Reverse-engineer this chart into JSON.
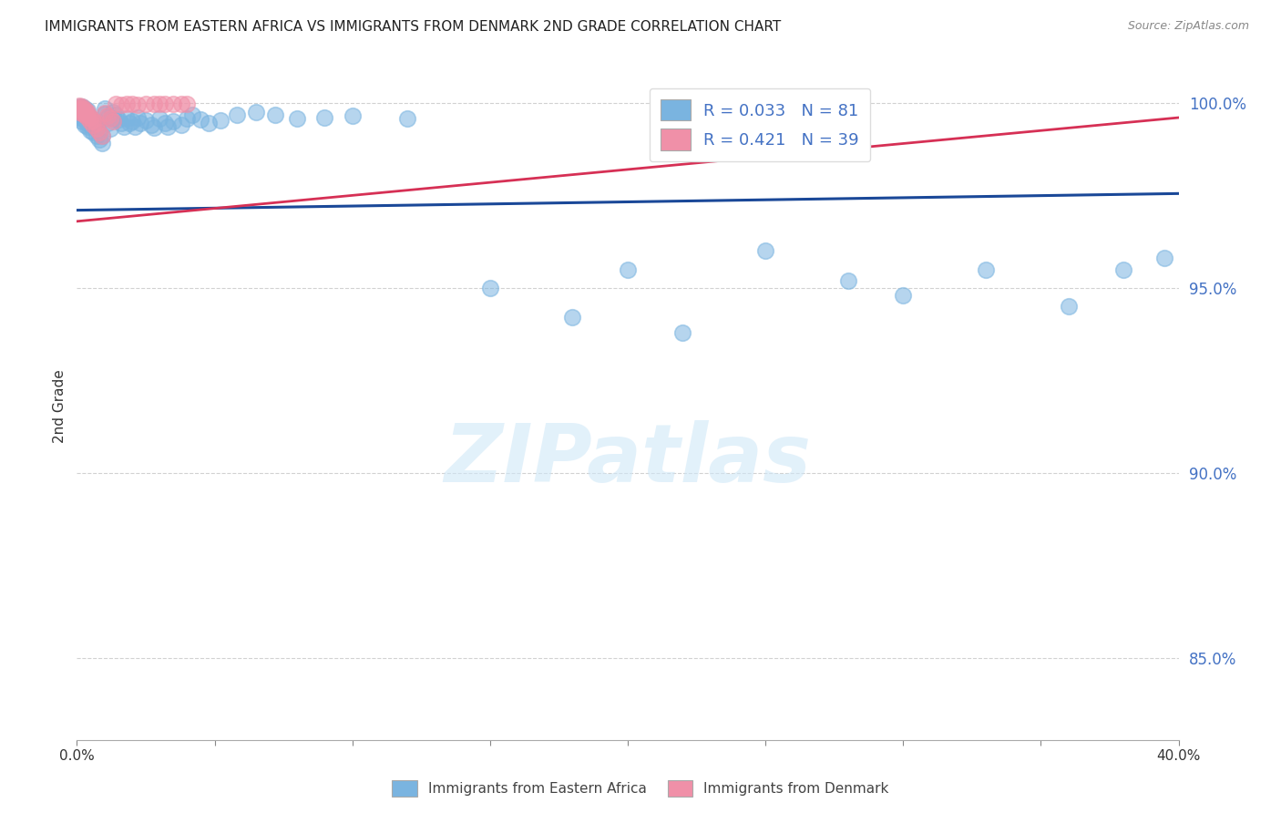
{
  "title": "IMMIGRANTS FROM EASTERN AFRICA VS IMMIGRANTS FROM DENMARK 2ND GRADE CORRELATION CHART",
  "source": "Source: ZipAtlas.com",
  "ylabel": "2nd Grade",
  "xlim": [
    0.0,
    0.4
  ],
  "ylim": [
    0.828,
    1.008
  ],
  "yticks": [
    0.85,
    0.9,
    0.95,
    1.0
  ],
  "ytick_labels": [
    "85.0%",
    "90.0%",
    "95.0%",
    "100.0%"
  ],
  "xticks": [
    0.0,
    0.05,
    0.1,
    0.15,
    0.2,
    0.25,
    0.3,
    0.35,
    0.4
  ],
  "xtick_labels": [
    "0.0%",
    "",
    "",
    "",
    "",
    "",
    "",
    "",
    "40.0%"
  ],
  "legend_blue_label": "Immigrants from Eastern Africa",
  "legend_pink_label": "Immigrants from Denmark",
  "R_blue": 0.033,
  "N_blue": 81,
  "R_pink": 0.421,
  "N_pink": 39,
  "blue_color": "#7ab4e0",
  "pink_color": "#f090a8",
  "blue_line_color": "#1a4898",
  "pink_line_color": "#d63055",
  "watermark": "ZIPatlas",
  "background_color": "#ffffff",
  "grid_color": "#cccccc",
  "blue_scatter_x": [
    0.0005,
    0.001,
    0.001,
    0.001,
    0.001,
    0.002,
    0.002,
    0.002,
    0.002,
    0.002,
    0.003,
    0.003,
    0.003,
    0.003,
    0.003,
    0.004,
    0.004,
    0.004,
    0.004,
    0.004,
    0.005,
    0.005,
    0.005,
    0.006,
    0.006,
    0.006,
    0.007,
    0.007,
    0.007,
    0.008,
    0.008,
    0.009,
    0.009,
    0.01,
    0.01,
    0.011,
    0.011,
    0.012,
    0.013,
    0.013,
    0.014,
    0.015,
    0.016,
    0.017,
    0.018,
    0.019,
    0.02,
    0.021,
    0.022,
    0.023,
    0.025,
    0.027,
    0.028,
    0.03,
    0.032,
    0.033,
    0.035,
    0.038,
    0.04,
    0.042,
    0.045,
    0.048,
    0.052,
    0.058,
    0.065,
    0.072,
    0.08,
    0.09,
    0.1,
    0.12,
    0.15,
    0.18,
    0.2,
    0.22,
    0.25,
    0.28,
    0.3,
    0.33,
    0.36,
    0.38,
    0.395
  ],
  "blue_scatter_y": [
    0.998,
    0.996,
    0.997,
    0.9985,
    0.999,
    0.995,
    0.996,
    0.9975,
    0.9985,
    0.999,
    0.994,
    0.9955,
    0.9965,
    0.9975,
    0.9985,
    0.9935,
    0.9945,
    0.9958,
    0.997,
    0.998,
    0.9925,
    0.994,
    0.996,
    0.992,
    0.9935,
    0.995,
    0.991,
    0.9928,
    0.9945,
    0.99,
    0.992,
    0.989,
    0.9912,
    0.9985,
    0.997,
    0.996,
    0.9945,
    0.993,
    0.9975,
    0.9958,
    0.9968,
    0.9955,
    0.9945,
    0.9935,
    0.9958,
    0.9945,
    0.995,
    0.9935,
    0.996,
    0.9945,
    0.9952,
    0.994,
    0.9932,
    0.9958,
    0.9945,
    0.9935,
    0.995,
    0.994,
    0.9958,
    0.9968,
    0.9955,
    0.9945,
    0.9952,
    0.9968,
    0.9975,
    0.9968,
    0.9958,
    0.996,
    0.9965,
    0.9958,
    0.95,
    0.942,
    0.955,
    0.938,
    0.96,
    0.952,
    0.948,
    0.955,
    0.945,
    0.955,
    0.958
  ],
  "pink_scatter_x": [
    0.0005,
    0.0008,
    0.001,
    0.001,
    0.001,
    0.002,
    0.002,
    0.002,
    0.002,
    0.003,
    0.003,
    0.003,
    0.004,
    0.004,
    0.004,
    0.005,
    0.005,
    0.006,
    0.006,
    0.007,
    0.007,
    0.008,
    0.009,
    0.01,
    0.011,
    0.012,
    0.013,
    0.014,
    0.016,
    0.018,
    0.02,
    0.022,
    0.025,
    0.028,
    0.03,
    0.032,
    0.035,
    0.038,
    0.04
  ],
  "pink_scatter_y": [
    0.9985,
    0.9988,
    0.998,
    0.9975,
    0.9992,
    0.9972,
    0.998,
    0.9985,
    0.999,
    0.9968,
    0.9975,
    0.9982,
    0.996,
    0.9968,
    0.9975,
    0.995,
    0.996,
    0.994,
    0.9952,
    0.993,
    0.9945,
    0.992,
    0.991,
    0.9972,
    0.9965,
    0.9958,
    0.995,
    0.9998,
    0.9994,
    0.9998,
    0.9996,
    0.9994,
    0.9998,
    0.9996,
    0.9998,
    0.9996,
    0.9998,
    0.9997,
    0.9997
  ]
}
